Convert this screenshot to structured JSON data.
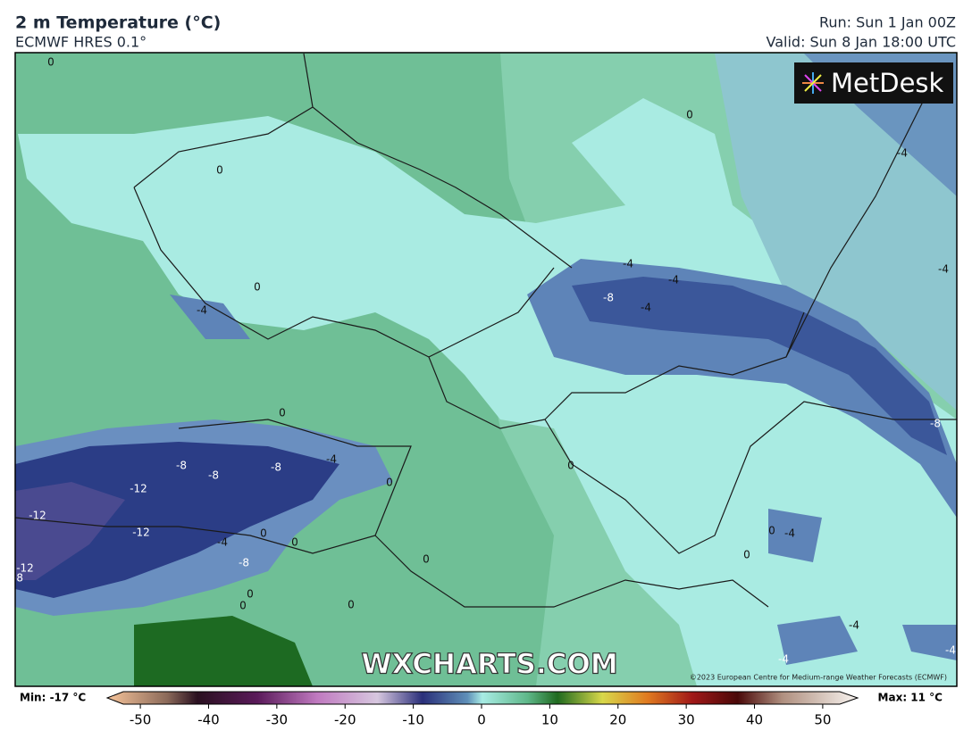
{
  "header": {
    "title": "2 m Temperature (°C)",
    "subtitle": "ECMWF HRES 0.1°",
    "run": "Run: Sun 1 Jan 00Z",
    "valid": "Valid: Sun 8 Jan 18:00 UTC"
  },
  "map": {
    "logo": "MetDesk",
    "watermark": "WXCHARTS.COM",
    "copyright": "©2023 European Centre for Medium-range Weather Forecasts (ECMWF)",
    "contour_labels": [
      0,
      0,
      -4,
      0,
      -4,
      -4,
      -4,
      0,
      -8,
      -4,
      -4,
      0,
      -8,
      -8,
      -8,
      -8,
      -4,
      0,
      0,
      -12,
      -12,
      -12,
      0,
      -4,
      0,
      -8,
      0,
      0,
      -4,
      0,
      -12,
      -8,
      0,
      0,
      0,
      -4,
      -4,
      -4
    ]
  },
  "colorbar": {
    "min": "Min: -17 °C",
    "max": "Max: 11 °C",
    "xlim": [
      -52.5,
      52.5
    ],
    "ticks": [
      -50,
      -40,
      -30,
      -20,
      -10,
      0,
      10,
      20,
      30,
      40,
      50
    ]
  }
}
